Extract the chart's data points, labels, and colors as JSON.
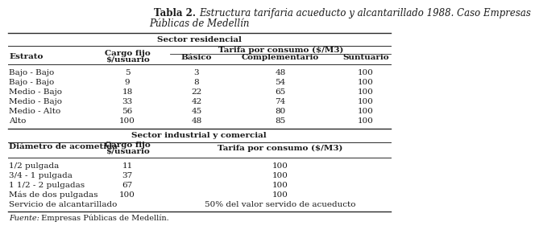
{
  "title_bold": "Tabla 2. ",
  "title_italic": "Estructura tarifaria acueducto y alcantarillado 1988. Caso Empresas",
  "title_italic2": "Públicas de Medellín",
  "sector_residencial": "Sector residencial",
  "sector_industrial": "Sector industrial y comercial",
  "residencial_rows": [
    [
      "Bajo - Bajo",
      "5",
      "3",
      "48",
      "100"
    ],
    [
      "Bajo - Bajo",
      "9",
      "8",
      "54",
      "100"
    ],
    [
      "Medio - Bajo",
      "18",
      "22",
      "65",
      "100"
    ],
    [
      "Medio - Bajo",
      "33",
      "42",
      "74",
      "100"
    ],
    [
      "Medio - Alto",
      "56",
      "45",
      "80",
      "100"
    ],
    [
      "Alto",
      "100",
      "48",
      "85",
      "100"
    ]
  ],
  "industrial_rows": [
    [
      "1/2 pulgada",
      "11",
      "100"
    ],
    [
      "3/4 - 1 pulgada",
      "37",
      "100"
    ],
    [
      "1 1/2 - 2 pulgadas",
      "67",
      "100"
    ],
    [
      "Más de dos pulgadas",
      "100",
      "100"
    ],
    [
      "Servicio de alcantarillado",
      "",
      "50% del valor servido de acueducto"
    ]
  ],
  "bg_color": "#ffffff",
  "text_color": "#1a1a1a",
  "line_color": "#2a2a2a",
  "font_size": 7.5,
  "fig_w": 5.03,
  "fig_h": 4.47
}
